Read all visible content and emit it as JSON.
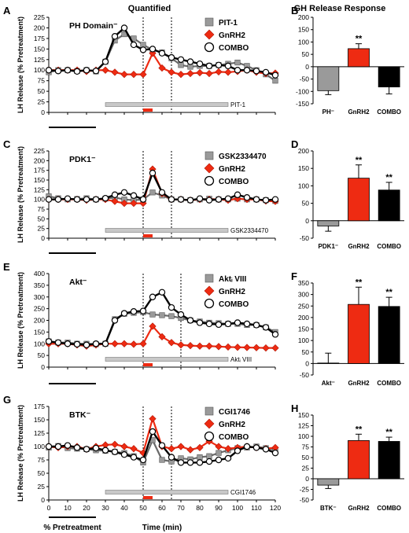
{
  "headers": {
    "left": "Quantified",
    "right": "GH Release Response"
  },
  "common": {
    "ylabel": "LH Release (% Pretreatment)",
    "xlabel": "Time (min)",
    "xlabel_left": "% Pretreatment",
    "x_ticks": [
      0,
      10,
      20,
      30,
      40,
      50,
      60,
      70,
      80,
      90,
      100,
      110,
      120
    ],
    "x": [
      0,
      5,
      10,
      15,
      20,
      25,
      30,
      35,
      40,
      45,
      50,
      55,
      60,
      65,
      70,
      75,
      80,
      85,
      90,
      95,
      100,
      105,
      110,
      115,
      120
    ]
  },
  "colors": {
    "inhibitor": "#9a9a9a",
    "gnrh2": "#ee2b12",
    "combo": "#000000",
    "treatment_bar": "#c8c8c8"
  },
  "chart_data": [
    {
      "panel": "A",
      "type": "line",
      "title": "PH Domain⁻",
      "ylim": [
        0,
        225
      ],
      "yticks": [
        0,
        25,
        50,
        75,
        100,
        125,
        150,
        175,
        200,
        225
      ],
      "vlines": [
        50,
        65
      ],
      "drug_label": "PIT-1",
      "legend": [
        "PIT-1",
        "GnRH2",
        "COMBO"
      ],
      "series": [
        {
          "name": "PIT-1",
          "values": [
            95,
            100,
            100,
            98,
            100,
            97,
            120,
            170,
            185,
            175,
            160,
            148,
            142,
            128,
            112,
            108,
            110,
            110,
            112,
            115,
            118,
            110,
            100,
            90,
            75
          ]
        },
        {
          "name": "GnRH2",
          "values": [
            100,
            100,
            100,
            100,
            97,
            100,
            100,
            95,
            90,
            90,
            90,
            140,
            105,
            95,
            90,
            92,
            94,
            92,
            96,
            95,
            97,
            100,
            95,
            92,
            93
          ]
        },
        {
          "name": "COMBO",
          "values": [
            100,
            98,
            100,
            97,
            100,
            98,
            120,
            180,
            200,
            160,
            148,
            150,
            140,
            130,
            125,
            120,
            115,
            110,
            112,
            110,
            100,
            100,
            98,
            95,
            88
          ]
        }
      ]
    },
    {
      "panel": "C",
      "type": "line",
      "title": "PDK1⁻",
      "ylim": [
        0,
        225
      ],
      "yticks": [
        0,
        25,
        50,
        75,
        100,
        125,
        150,
        175,
        200,
        225
      ],
      "vlines": [
        50,
        65
      ],
      "drug_label": "GSK2334470",
      "legend": [
        "GSK2334470",
        "GnRH2",
        "COMBO"
      ],
      "series": [
        {
          "name": "GSK2334470",
          "values": [
            108,
            103,
            100,
            101,
            103,
            100,
            102,
            105,
            100,
            98,
            100,
            118,
            110,
            100,
            100,
            98,
            100,
            102,
            100,
            100,
            102,
            100,
            100,
            98,
            96
          ]
        },
        {
          "name": "GnRH2",
          "values": [
            100,
            100,
            100,
            100,
            98,
            100,
            100,
            95,
            90,
            90,
            90,
            178,
            115,
            100,
            100,
            98,
            100,
            100,
            100,
            98,
            102,
            100,
            100,
            96,
            95
          ]
        },
        {
          "name": "COMBO",
          "values": [
            100,
            100,
            102,
            100,
            100,
            100,
            103,
            112,
            118,
            110,
            100,
            168,
            118,
            100,
            100,
            98,
            102,
            98,
            100,
            102,
            112,
            105,
            100,
            98,
            100
          ]
        }
      ]
    },
    {
      "panel": "E",
      "type": "line",
      "title": "Akt⁻",
      "ylim": [
        0,
        400
      ],
      "yticks": [
        0,
        50,
        100,
        150,
        200,
        250,
        300,
        350,
        400
      ],
      "vlines": [
        50,
        70
      ],
      "drug_label": "Aktᵢ VIII",
      "legend": [
        "Aktᵢ VIII",
        "GnRH2",
        "COMBO"
      ],
      "series": [
        {
          "name": "Aktᵢ VIII",
          "values": [
            110,
            105,
            105,
            100,
            100,
            98,
            100,
            205,
            228,
            232,
            235,
            225,
            222,
            218,
            210,
            200,
            195,
            190,
            188,
            185,
            185,
            180,
            180,
            170,
            150
          ]
        },
        {
          "name": "GnRH2",
          "values": [
            100,
            100,
            100,
            95,
            90,
            95,
            100,
            100,
            100,
            98,
            100,
            175,
            130,
            105,
            95,
            92,
            90,
            90,
            88,
            86,
            85,
            84,
            83,
            82,
            82
          ]
        },
        {
          "name": "COMBO",
          "values": [
            110,
            105,
            100,
            98,
            95,
            100,
            100,
            200,
            230,
            238,
            240,
            300,
            320,
            255,
            225,
            200,
            190,
            185,
            182,
            185,
            190,
            185,
            180,
            170,
            140
          ]
        }
      ]
    },
    {
      "panel": "G",
      "type": "line",
      "title": "BTK⁻",
      "ylim": [
        0,
        175
      ],
      "yticks": [
        0,
        25,
        50,
        75,
        100,
        125,
        150,
        175
      ],
      "vlines": [
        50,
        65
      ],
      "drug_label": "CGI1746",
      "legend": [
        "CGI1746",
        "GnRH2",
        "COMBO"
      ],
      "series": [
        {
          "name": "CGI1746",
          "values": [
            98,
            101,
            97,
            96,
            95,
            93,
            92,
            90,
            88,
            82,
            70,
            112,
            75,
            72,
            78,
            76,
            80,
            82,
            88,
            93,
            97,
            98,
            100,
            97,
            94
          ]
        },
        {
          "name": "GnRH2",
          "values": [
            100,
            98,
            100,
            100,
            95,
            100,
            103,
            104,
            100,
            96,
            88,
            152,
            100,
            96,
            100,
            94,
            98,
            110,
            100,
            96,
            98,
            100,
            98,
            96,
            98
          ]
        },
        {
          "name": "COMBO",
          "values": [
            100,
            100,
            102,
            98,
            95,
            97,
            93,
            90,
            85,
            80,
            75,
            128,
            102,
            80,
            70,
            70,
            70,
            72,
            75,
            78,
            92,
            100,
            98,
            95,
            88
          ]
        }
      ]
    },
    {
      "panel": "B",
      "type": "bar",
      "title": "",
      "ylim": [
        -150,
        200
      ],
      "yticks": [
        -150,
        -100,
        -50,
        0,
        50,
        100,
        150,
        200
      ],
      "categories": [
        "PH⁻",
        "GnRH2",
        "COMBO"
      ],
      "values": [
        -97,
        73,
        -82
      ],
      "errors": [
        16,
        20,
        28
      ],
      "significance": [
        "",
        "**",
        ""
      ]
    },
    {
      "panel": "D",
      "type": "bar",
      "title": "",
      "ylim": [
        -50,
        200
      ],
      "yticks": [
        -50,
        0,
        50,
        100,
        150,
        200
      ],
      "categories": [
        "PDK1⁻",
        "GnRH2",
        "COMBO"
      ],
      "values": [
        -15,
        122,
        88
      ],
      "errors": [
        15,
        38,
        22
      ],
      "significance": [
        "",
        "**",
        "**"
      ]
    },
    {
      "panel": "F",
      "type": "bar",
      "title": "",
      "ylim": [
        -50,
        350
      ],
      "yticks": [
        -50,
        0,
        50,
        100,
        150,
        200,
        250,
        300,
        350
      ],
      "categories": [
        "Akt⁻",
        "GnRH2",
        "COMBO"
      ],
      "values": [
        2,
        257,
        248
      ],
      "errors": [
        43,
        75,
        40
      ],
      "significance": [
        "",
        "**",
        "**"
      ]
    },
    {
      "panel": "H",
      "type": "bar",
      "title": "",
      "ylim": [
        -50,
        150
      ],
      "yticks": [
        -50,
        -25,
        0,
        25,
        50,
        75,
        100,
        125,
        150
      ],
      "categories": [
        "BTK⁻",
        "GnRH2",
        "COMBO"
      ],
      "values": [
        -15,
        90,
        88
      ],
      "errors": [
        8,
        15,
        10
      ],
      "significance": [
        "",
        "**",
        "**"
      ]
    }
  ]
}
